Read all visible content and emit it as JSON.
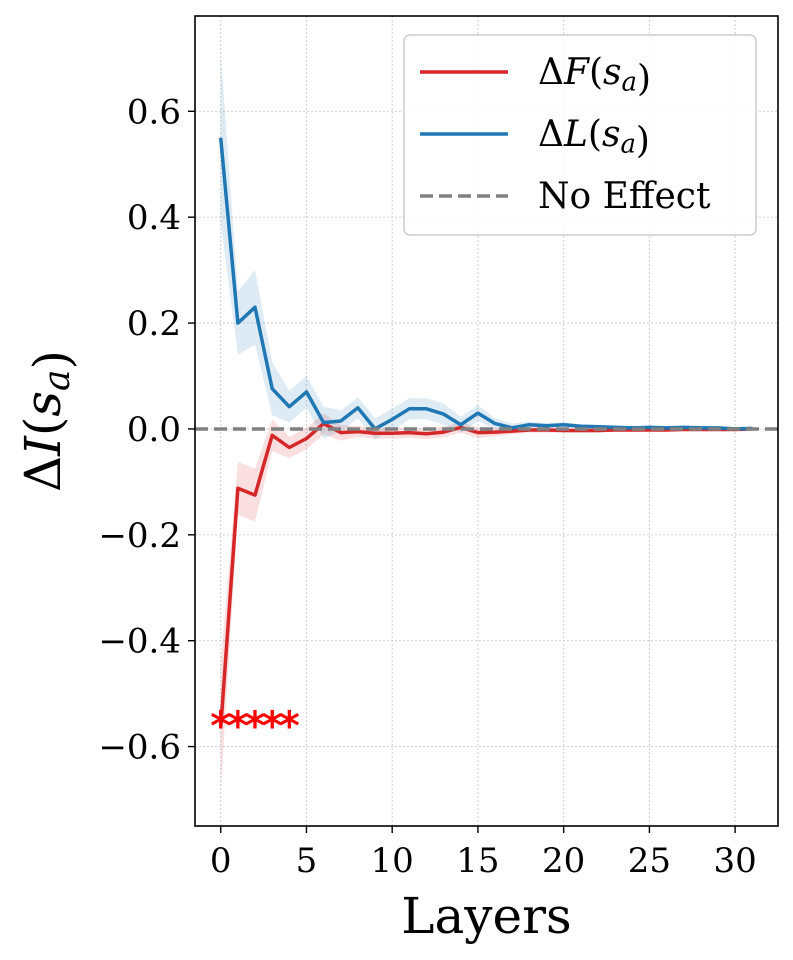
{
  "chart_data": {
    "type": "line",
    "title": "",
    "xlabel": "Layers",
    "ylabel": "ΔI(s_a)",
    "xlim": [
      -1.5,
      32.5
    ],
    "ylim": [
      -0.75,
      0.78
    ],
    "grid": true,
    "legend_position": "top-right",
    "x_ticks": [
      0,
      5,
      10,
      15,
      20,
      25,
      30
    ],
    "y_ticks": [
      0.6,
      0.4,
      0.2,
      0.0,
      -0.2,
      -0.4,
      -0.6
    ],
    "x_tick_labels": [
      "0",
      "5",
      "10",
      "15",
      "20",
      "25",
      "30"
    ],
    "y_tick_labels": [
      "0.6",
      "0.4",
      "0.2",
      "0.0",
      "−0.2",
      "−0.4",
      "−0.6"
    ],
    "x": [
      0,
      1,
      2,
      3,
      4,
      5,
      6,
      7,
      8,
      9,
      10,
      11,
      12,
      13,
      14,
      15,
      16,
      17,
      18,
      19,
      20,
      21,
      22,
      23,
      24,
      25,
      26,
      27,
      28,
      29,
      30,
      31
    ],
    "series": [
      {
        "name": "ΔF(s_a)",
        "color": "#d62728",
        "values": [
          -0.565,
          -0.112,
          -0.125,
          -0.012,
          -0.035,
          -0.018,
          0.01,
          -0.007,
          -0.005,
          -0.008,
          -0.008,
          -0.007,
          -0.009,
          -0.006,
          0.003,
          -0.007,
          -0.006,
          -0.004,
          -0.002,
          -0.002,
          -0.003,
          -0.003,
          -0.003,
          -0.002,
          -0.002,
          -0.002,
          -0.002,
          -0.001,
          -0.001,
          -0.001,
          -0.001,
          0.0
        ],
        "band": [
          0.12,
          0.05,
          0.05,
          0.03,
          0.02,
          0.02,
          0.02,
          0.015,
          0.01,
          0.01,
          0.01,
          0.01,
          0.01,
          0.01,
          0.01,
          0.01,
          0.008,
          0.006,
          0.005,
          0.005,
          0.004,
          0.004,
          0.004,
          0.003,
          0.003,
          0.003,
          0.003,
          0.003,
          0.003,
          0.003,
          0.003,
          0.003
        ]
      },
      {
        "name": "ΔL(s_a)",
        "color": "#1f77b4",
        "values": [
          0.55,
          0.2,
          0.23,
          0.076,
          0.042,
          0.07,
          0.012,
          0.015,
          0.04,
          0.0,
          0.018,
          0.038,
          0.038,
          0.028,
          0.008,
          0.03,
          0.01,
          0.002,
          0.008,
          0.006,
          0.008,
          0.005,
          0.004,
          0.003,
          0.002,
          0.003,
          0.002,
          0.003,
          0.002,
          0.002,
          0.0,
          0.001
        ],
        "band": [
          0.16,
          0.06,
          0.07,
          0.05,
          0.03,
          0.03,
          0.03,
          0.02,
          0.02,
          0.02,
          0.02,
          0.02,
          0.02,
          0.02,
          0.015,
          0.015,
          0.01,
          0.008,
          0.006,
          0.005,
          0.005,
          0.004,
          0.004,
          0.004,
          0.003,
          0.003,
          0.003,
          0.003,
          0.003,
          0.003,
          0.003,
          0.003
        ]
      },
      {
        "name": "No Effect",
        "color": "#808080",
        "style": "dashed",
        "y": 0.0
      }
    ],
    "annotations": {
      "markers": [
        {
          "x": 0,
          "y": -0.545,
          "text": "*"
        },
        {
          "x": 1,
          "y": -0.545,
          "text": "*"
        },
        {
          "x": 2,
          "y": -0.545,
          "text": "*"
        },
        {
          "x": 3,
          "y": -0.545,
          "text": "*"
        },
        {
          "x": 4,
          "y": -0.545,
          "text": "*"
        }
      ],
      "color": "#ff0000"
    }
  }
}
